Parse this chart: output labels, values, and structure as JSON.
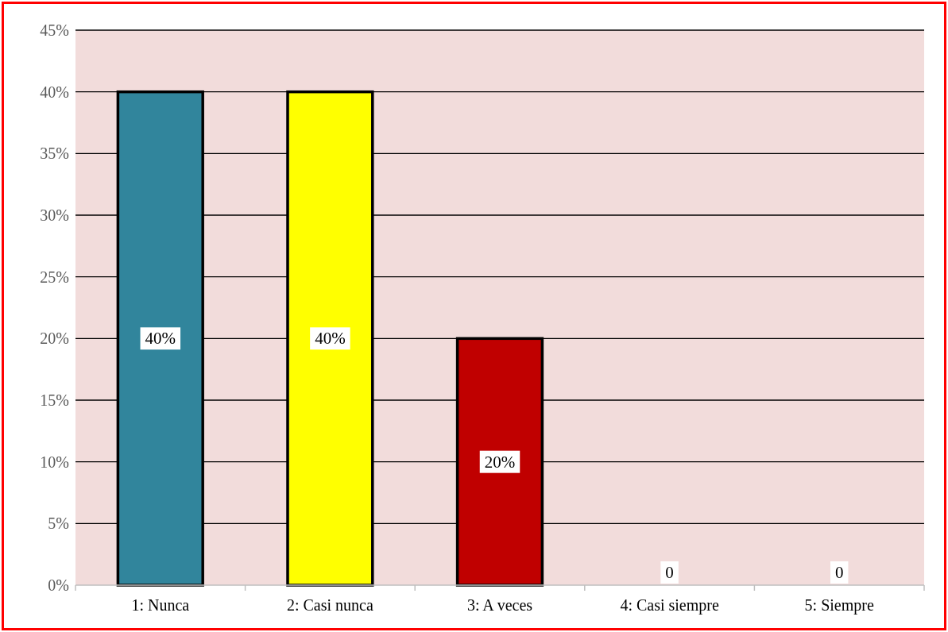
{
  "chart_data": {
    "type": "bar",
    "categories": [
      "1: Nunca",
      "2: Casi nunca",
      "3: A veces",
      "4: Casi siempre",
      "5: Siempre"
    ],
    "values": [
      40,
      40,
      20,
      0,
      0
    ],
    "colors": [
      "#31859c",
      "#ffff00",
      "#c00000",
      "#4f81bd",
      "#4f81bd"
    ],
    "value_labels": [
      "40%",
      "40%",
      "20%",
      "0",
      "0"
    ],
    "ylim": [
      0,
      45
    ],
    "yticks": [
      {
        "value": 0,
        "label": "0%"
      },
      {
        "value": 5,
        "label": "5%"
      },
      {
        "value": 10,
        "label": "10%"
      },
      {
        "value": 15,
        "label": "15%"
      },
      {
        "value": 20,
        "label": "20%"
      },
      {
        "value": 25,
        "label": "25%"
      },
      {
        "value": 30,
        "label": "30%"
      },
      {
        "value": 35,
        "label": "35%"
      },
      {
        "value": 40,
        "label": "40%"
      },
      {
        "value": 45,
        "label": "45%"
      }
    ],
    "grid": "y"
  }
}
